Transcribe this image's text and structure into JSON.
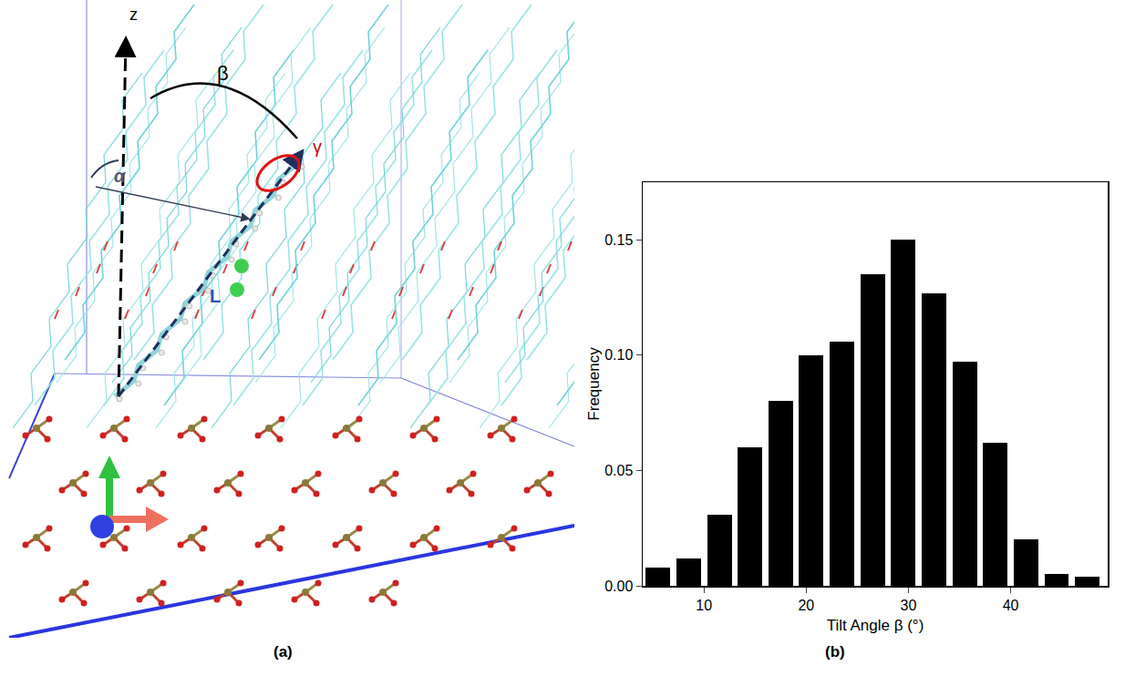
{
  "diagram": {
    "panel_label": "(a)",
    "axis_label": "z",
    "tilt_label": "β",
    "twist_label": "α",
    "rotation_label": "γ",
    "length_label": "L"
  },
  "chart_data": {
    "type": "histogram",
    "panel_label": "(b)",
    "x_label": "Tilt Angle β (°)",
    "y_label": "Frequency",
    "bins": [
      4,
      7,
      10,
      13,
      16,
      19,
      22,
      25,
      28,
      31,
      34,
      37,
      40,
      43,
      46,
      49
    ],
    "values": [
      0.008,
      0.012,
      0.031,
      0.06,
      0.08,
      0.1,
      0.106,
      0.135,
      0.15,
      0.127,
      0.097,
      0.062,
      0.02,
      0.005,
      0.004
    ],
    "color": "#000000",
    "xlim": [
      4,
      49.5
    ],
    "xticks": [
      10,
      20,
      30,
      40
    ],
    "ylim": [
      0,
      0.175
    ],
    "yticks": [
      {
        "value": 0,
        "label": "0.00"
      },
      {
        "value": 0.05,
        "label": "0.05"
      },
      {
        "value": 0.1,
        "label": "0.10"
      },
      {
        "value": 0.15,
        "label": "0.15"
      }
    ],
    "grid": false
  }
}
